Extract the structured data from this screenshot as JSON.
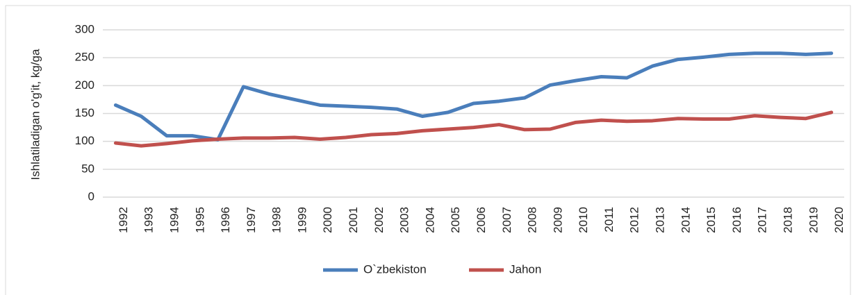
{
  "chart_data": {
    "type": "line",
    "ylabel": "Ishlatiladigan o'g'it, kg/ga",
    "categories": [
      "1992",
      "1993",
      "1994",
      "1995",
      "1996",
      "1997",
      "1998",
      "1999",
      "2000",
      "2001",
      "2002",
      "2003",
      "2004",
      "2005",
      "2006",
      "2007",
      "2008",
      "2009",
      "2010",
      "2011",
      "2012",
      "2013",
      "2014",
      "2015",
      "2016",
      "2017",
      "2018",
      "2019",
      "2020"
    ],
    "series": [
      {
        "name": "O`zbekiston",
        "color": "#4a7ebb",
        "values": [
          165,
          145,
          110,
          110,
          103,
          198,
          185,
          175,
          165,
          163,
          161,
          158,
          145,
          152,
          168,
          172,
          178,
          201,
          209,
          216,
          214,
          235,
          247,
          251,
          256,
          258,
          258,
          256,
          258
        ]
      },
      {
        "name": "Jahon",
        "color": "#c0504d",
        "values": [
          97,
          92,
          96,
          101,
          104,
          106,
          106,
          107,
          104,
          107,
          112,
          114,
          119,
          122,
          125,
          130,
          121,
          122,
          134,
          138,
          136,
          137,
          141,
          140,
          140,
          146,
          143,
          141,
          152
        ]
      }
    ],
    "ylim": [
      0,
      300
    ],
    "yticks": [
      0,
      50,
      100,
      150,
      200,
      250,
      300
    ],
    "grid": true,
    "legend": "bottom"
  }
}
